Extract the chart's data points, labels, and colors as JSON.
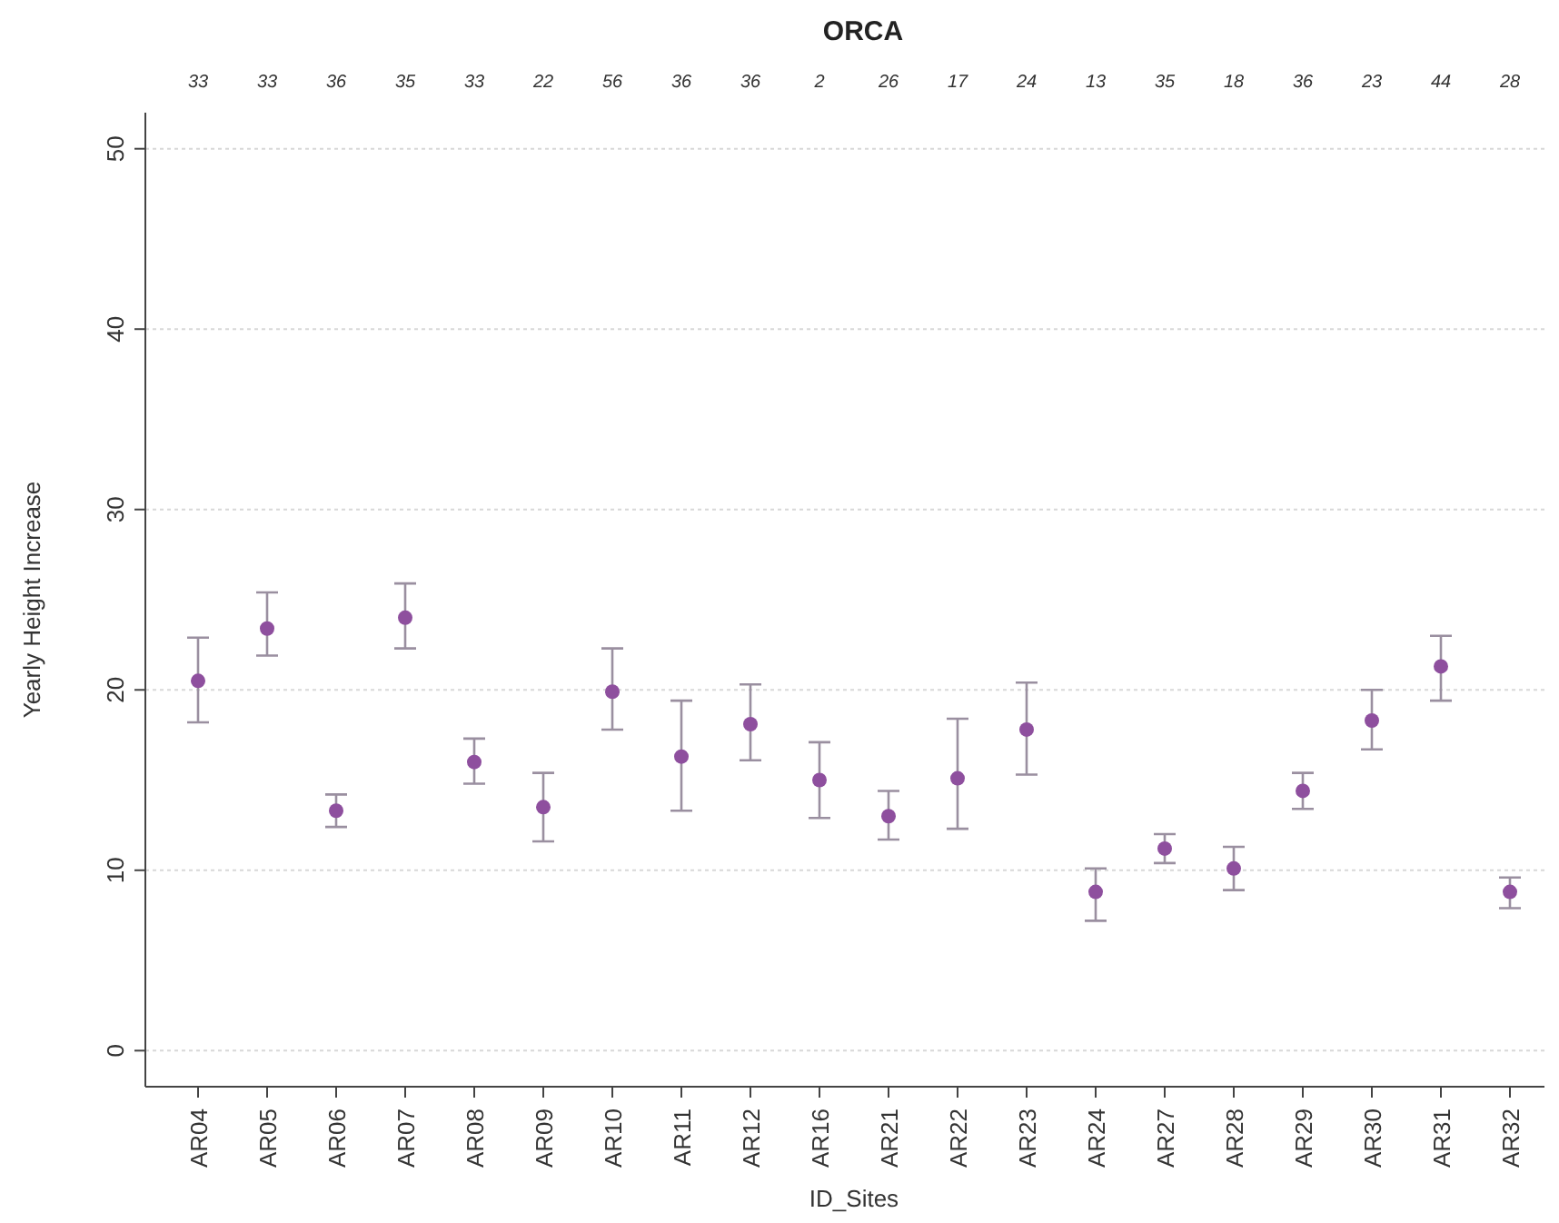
{
  "chart_data": {
    "type": "scatter",
    "title": "ORCA",
    "xlabel": "ID_Sites",
    "ylabel": "Yearly Height Increase",
    "categories": [
      "AR04",
      "AR05",
      "AR06",
      "AR07",
      "AR08",
      "AR09",
      "AR10",
      "AR11",
      "AR12",
      "AR16",
      "AR21",
      "AR22",
      "AR23",
      "AR24",
      "AR27",
      "AR28",
      "AR29",
      "AR30",
      "AR31",
      "AR32"
    ],
    "series": [
      {
        "color": "#8e4f9e",
        "values": [
          20.5,
          23.4,
          13.3,
          24.0,
          16.0,
          13.5,
          19.9,
          16.3,
          18.1,
          15.0,
          13.0,
          15.1,
          17.8,
          8.8,
          11.2,
          10.1,
          14.4,
          18.3,
          21.3,
          8.8
        ],
        "errors": [
          [
            18.2,
            22.9
          ],
          [
            21.9,
            25.4
          ],
          [
            12.4,
            14.2
          ],
          [
            22.3,
            25.9
          ],
          [
            14.8,
            17.3
          ],
          [
            11.6,
            15.4
          ],
          [
            17.8,
            22.3
          ],
          [
            13.3,
            19.4
          ],
          [
            16.1,
            20.3
          ],
          [
            12.9,
            17.1
          ],
          [
            11.7,
            14.4
          ],
          [
            12.3,
            18.4
          ],
          [
            15.3,
            20.4
          ],
          [
            7.2,
            10.1
          ],
          [
            10.4,
            12.0
          ],
          [
            8.9,
            11.3
          ],
          [
            13.4,
            15.4
          ],
          [
            16.7,
            20.0
          ],
          [
            19.4,
            23.0
          ],
          [
            7.9,
            9.6
          ]
        ]
      }
    ],
    "annotations": [
      "33",
      "33",
      "36",
      "35",
      "33",
      "22",
      "56",
      "36",
      "36",
      "2",
      "26",
      "17",
      "24",
      "13",
      "35",
      "18",
      "36",
      "23",
      "44",
      "28"
    ],
    "ylim": [
      -2,
      52
    ],
    "yticks": [
      0,
      10,
      20,
      30,
      40,
      50
    ],
    "grid": "y",
    "marker": "circle"
  }
}
